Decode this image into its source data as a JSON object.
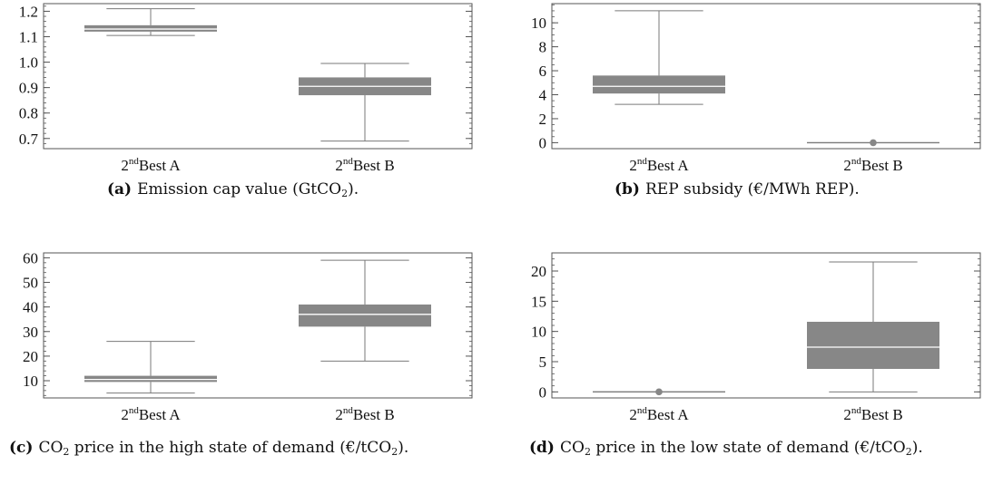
{
  "chart_data": [
    {
      "type": "box",
      "panel": "a",
      "caption_label": "(a)",
      "caption_main": "Emission cap value (GtCO",
      "caption_sub": "2",
      "caption_tail": ").",
      "categories": [
        {
          "sup": "nd",
          "sup_prefix": "2",
          "name": "Best A"
        },
        {
          "sup": "nd",
          "sup_prefix": "2",
          "name": "Best B"
        }
      ],
      "boxes": [
        {
          "min": 1.105,
          "q1": 1.12,
          "median": 1.13,
          "q3": 1.145,
          "max": 1.21
        },
        {
          "min": 0.69,
          "q1": 0.87,
          "median": 0.905,
          "q3": 0.94,
          "max": 0.995
        }
      ],
      "ylim": [
        0.66,
        1.23
      ],
      "yticks": [
        0.7,
        0.8,
        0.9,
        1.0,
        1.1,
        1.2
      ],
      "ytick_labels": [
        "0.7",
        "0.8",
        "0.9",
        "1.0",
        "1.1",
        "1.2"
      ],
      "minor_step": 0.02
    },
    {
      "type": "box",
      "panel": "b",
      "caption_label": "(b)",
      "caption_main": "REP subsidy (€/MWh REP).",
      "caption_sub": "",
      "caption_tail": "",
      "categories": [
        {
          "sup": "nd",
          "sup_prefix": "2",
          "name": "Best A"
        },
        {
          "sup": "nd",
          "sup_prefix": "2",
          "name": "Best B"
        }
      ],
      "boxes": [
        {
          "min": 3.2,
          "q1": 4.1,
          "median": 4.7,
          "q3": 5.6,
          "max": 11.0
        },
        {
          "min": 0.0,
          "q1": 0.0,
          "median": 0.0,
          "q3": 0.0,
          "max": 0.0,
          "point": 0.0
        }
      ],
      "ylim": [
        -0.5,
        11.6
      ],
      "yticks": [
        0,
        2,
        4,
        6,
        8,
        10
      ],
      "ytick_labels": [
        "0",
        "2",
        "4",
        "6",
        "8",
        "10"
      ],
      "minor_step": 0.5
    },
    {
      "type": "box",
      "panel": "c",
      "caption_label": "(c)",
      "caption_main": "CO",
      "caption_sub": "2",
      "caption_tail": " price in the high state of demand (€/tCO",
      "caption_sub2": "2",
      "caption_tail2": ").",
      "categories": [
        {
          "sup": "nd",
          "sup_prefix": "2",
          "name": "Best A"
        },
        {
          "sup": "nd",
          "sup_prefix": "2",
          "name": "Best B"
        }
      ],
      "boxes": [
        {
          "min": 5.0,
          "q1": 9.5,
          "median": 10.5,
          "q3": 12.0,
          "max": 26.0
        },
        {
          "min": 18.0,
          "q1": 32.0,
          "median": 37.0,
          "q3": 41.0,
          "max": 59.0
        }
      ],
      "ylim": [
        3.0,
        62.0
      ],
      "yticks": [
        10,
        20,
        30,
        40,
        50,
        60
      ],
      "ytick_labels": [
        "10",
        "20",
        "30",
        "40",
        "50",
        "60"
      ],
      "minor_step": 2
    },
    {
      "type": "box",
      "panel": "d",
      "caption_label": "(d)",
      "caption_main": "CO",
      "caption_sub": "2",
      "caption_tail": " price in the low state of demand (€/tCO",
      "caption_sub2": "2",
      "caption_tail2": ").",
      "categories": [
        {
          "sup": "nd",
          "sup_prefix": "2",
          "name": "Best A"
        },
        {
          "sup": "nd",
          "sup_prefix": "2",
          "name": "Best B"
        }
      ],
      "boxes": [
        {
          "min": 0.0,
          "q1": 0.0,
          "median": 0.0,
          "q3": 0.0,
          "max": 0.0,
          "point": 0.0
        },
        {
          "min": 0.0,
          "q1": 3.8,
          "median": 7.4,
          "q3": 11.6,
          "max": 21.5
        }
      ],
      "ylim": [
        -1.0,
        23.0
      ],
      "yticks": [
        0,
        5,
        10,
        15,
        20
      ],
      "ytick_labels": [
        "0",
        "5",
        "10",
        "15",
        "20"
      ],
      "minor_step": 1
    }
  ],
  "colors": {
    "box": "#878787",
    "whisker": "#7a7a7a",
    "median": "#ffffff",
    "axis": "#555555"
  }
}
